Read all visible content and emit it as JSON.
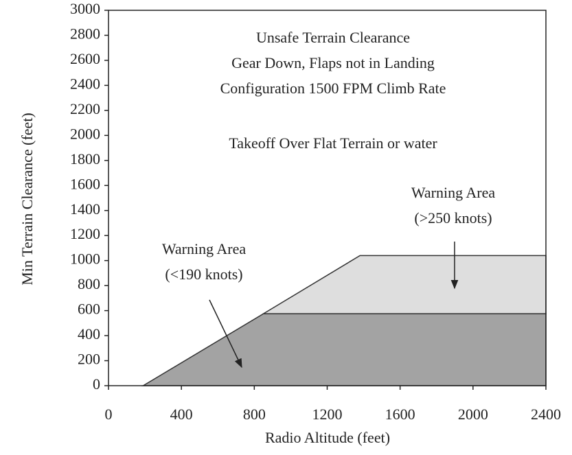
{
  "chart_data": {
    "type": "area",
    "xlabel": "Radio Altitude (feet)",
    "ylabel": "Min Terrain Clearance (feet)",
    "xlim": [
      0,
      2400
    ],
    "xticks": [
      0,
      400,
      800,
      1200,
      1600,
      2000,
      2400
    ],
    "ylim": [
      0,
      3000
    ],
    "yticks": [
      0,
      200,
      400,
      600,
      800,
      1000,
      1200,
      1400,
      1600,
      1800,
      2000,
      2200,
      2400,
      2600,
      2800,
      3000
    ],
    "series": [
      {
        "color": "#a3a3a3",
        "x": [
          190,
          850,
          2400,
          2400
        ],
        "values": [
          0,
          575,
          575,
          0
        ]
      },
      {
        "color": "#dedede",
        "x": [
          850,
          1380,
          2400,
          2400
        ],
        "values": [
          575,
          1040,
          1040,
          575
        ]
      }
    ],
    "annotations": [
      [
        "Unsafe Terrain Clearance",
        "Gear Down, Flaps not in Landing",
        "Configuration 1500 FPM Climb Rate"
      ],
      [
        "Takeoff Over Flat Terrain or water"
      ],
      [
        "Warning Area",
        "(<190 knots)"
      ],
      [
        "Warning Area",
        "(>250 knots)"
      ]
    ]
  }
}
